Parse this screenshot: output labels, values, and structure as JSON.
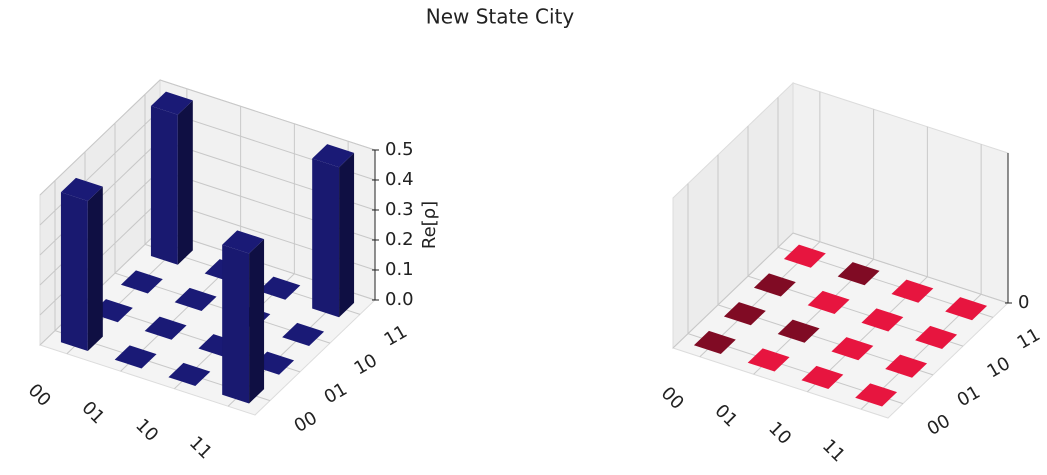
{
  "title": "New State City",
  "chart_data": [
    {
      "type": "bar3d",
      "x_categories": [
        "00",
        "01",
        "10",
        "11"
      ],
      "y_categories": [
        "00",
        "01",
        "10",
        "11"
      ],
      "values": [
        [
          0.5,
          0,
          0,
          0.5
        ],
        [
          0,
          0,
          0,
          0
        ],
        [
          0,
          0,
          0,
          0
        ],
        [
          0.5,
          0,
          0,
          0.5
        ]
      ],
      "color": "#191970",
      "zlim": [
        0,
        0.5
      ],
      "zticks": [
        {
          "value": 0,
          "label": "0.0"
        },
        0.1,
        0.2,
        0.3,
        0.4,
        0.5
      ],
      "zlabel": "Re[ρ]",
      "grid": true
    },
    {
      "type": "bar3d",
      "x_categories": [
        "00",
        "01",
        "10",
        "11"
      ],
      "y_categories": [
        "00",
        "01",
        "10",
        "11"
      ],
      "values": [
        [
          0,
          0,
          0,
          0
        ],
        [
          0,
          0,
          0,
          0
        ],
        [
          0,
          0,
          0,
          0
        ],
        [
          0,
          0,
          0,
          0
        ]
      ],
      "colors": [
        [
          "#7a0a22",
          "#7a0a22",
          "#7a0a22",
          "#dc143c"
        ],
        [
          "#dc143c",
          "#7a0a22",
          "#dc143c",
          "#7a0a22"
        ],
        [
          "#dc143c",
          "#dc143c",
          "#dc143c",
          "#dc143c"
        ],
        [
          "#dc143c",
          "#dc143c",
          "#dc143c",
          "#dc143c"
        ]
      ],
      "zlim": [
        0,
        0.5
      ],
      "zticks": [
        0
      ],
      "grid": true
    }
  ]
}
